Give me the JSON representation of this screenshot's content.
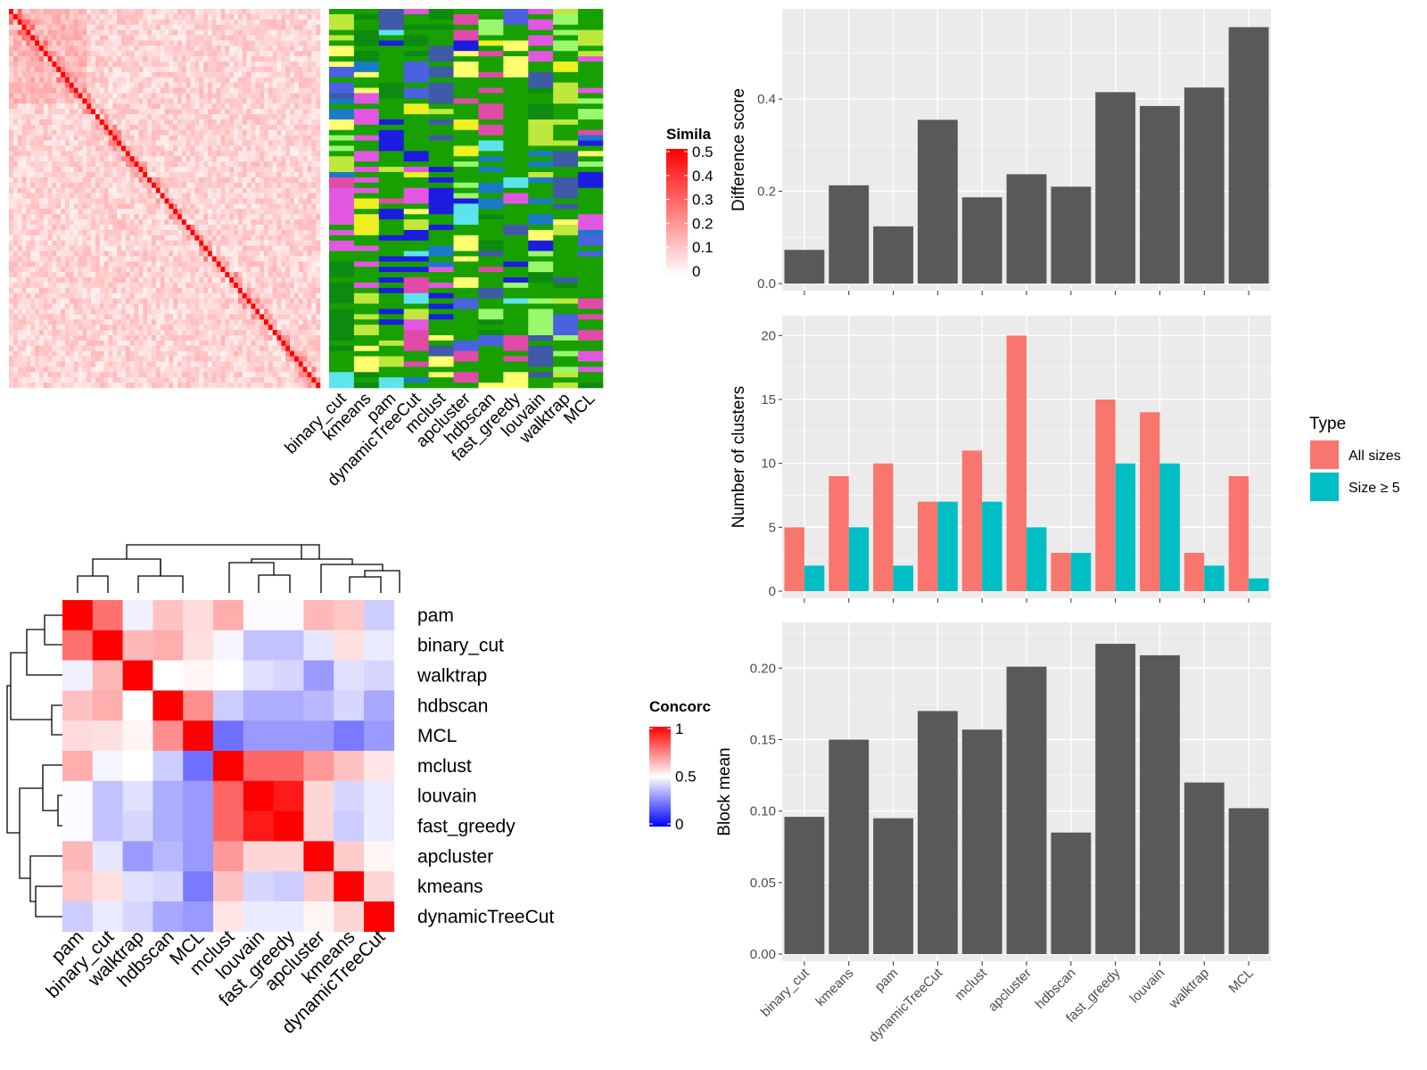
{
  "methods": [
    "binary_cut",
    "kmeans",
    "pam",
    "dynamicTreeCut",
    "mclust",
    "apcluster",
    "hdbscan",
    "fast_greedy",
    "louvain",
    "walktrap",
    "MCL"
  ],
  "similarity_heatmap": {
    "legend_title": "Simila",
    "legend_ticks": [
      "0.5",
      "0.4",
      "0.3",
      "0.2",
      "0.1",
      "0"
    ],
    "n_terms": 72,
    "diag_color": "#ff0000",
    "low_color": "#ffffff"
  },
  "membership_colors": [
    "#17a000",
    "#bfe83c",
    "#e257e2",
    "#4a62e0",
    "#3f5aa6",
    "#9af86f",
    "#5ce4ec",
    "#0d8a10",
    "#e04aa8",
    "#1c1ce0",
    "#f0f020",
    "#1a7ac8",
    "#ffff70"
  ],
  "concordance_heatmap": {
    "legend_title": "Concorc",
    "legend_ticks": [
      "1",
      "0.5",
      "0"
    ],
    "row_order": [
      "pam",
      "binary_cut",
      "walktrap",
      "hdbscan",
      "MCL",
      "mclust",
      "louvain",
      "fast_greedy",
      "apcluster",
      "kmeans",
      "dynamicTreeCut"
    ],
    "col_order": [
      "pam",
      "binary_cut",
      "walktrap",
      "hdbscan",
      "MCL",
      "mclust",
      "louvain",
      "fast_greedy",
      "apcluster",
      "kmeans",
      "dynamicTreeCut"
    ],
    "values": [
      [
        1.0,
        0.78,
        0.47,
        0.62,
        0.57,
        0.66,
        0.49,
        0.49,
        0.64,
        0.61,
        0.4
      ],
      [
        0.78,
        1.0,
        0.64,
        0.66,
        0.56,
        0.48,
        0.38,
        0.38,
        0.45,
        0.56,
        0.46
      ],
      [
        0.47,
        0.64,
        1.0,
        0.5,
        0.52,
        0.5,
        0.44,
        0.42,
        0.3,
        0.44,
        0.42
      ],
      [
        0.62,
        0.66,
        0.5,
        1.0,
        0.72,
        0.4,
        0.34,
        0.34,
        0.36,
        0.42,
        0.33
      ],
      [
        0.57,
        0.56,
        0.52,
        0.72,
        1.0,
        0.22,
        0.3,
        0.3,
        0.3,
        0.24,
        0.3
      ],
      [
        0.66,
        0.48,
        0.5,
        0.4,
        0.22,
        1.0,
        0.8,
        0.8,
        0.7,
        0.62,
        0.55
      ],
      [
        0.49,
        0.38,
        0.44,
        0.34,
        0.3,
        0.8,
        1.0,
        0.95,
        0.58,
        0.42,
        0.46
      ],
      [
        0.49,
        0.38,
        0.42,
        0.34,
        0.3,
        0.8,
        0.95,
        1.0,
        0.58,
        0.4,
        0.46
      ],
      [
        0.64,
        0.45,
        0.3,
        0.36,
        0.3,
        0.7,
        0.58,
        0.58,
        1.0,
        0.6,
        0.52
      ],
      [
        0.61,
        0.56,
        0.44,
        0.42,
        0.24,
        0.62,
        0.42,
        0.4,
        0.6,
        1.0,
        0.58
      ],
      [
        0.4,
        0.46,
        0.42,
        0.33,
        0.3,
        0.55,
        0.46,
        0.46,
        0.52,
        0.58,
        1.0
      ]
    ]
  },
  "chart_data": [
    {
      "type": "bar",
      "categories": [
        "binary_cut",
        "kmeans",
        "pam",
        "dynamicTreeCut",
        "mclust",
        "apcluster",
        "hdbscan",
        "fast_greedy",
        "louvain",
        "walktrap",
        "MCL"
      ],
      "values": [
        0.073,
        0.213,
        0.124,
        0.355,
        0.187,
        0.237,
        0.21,
        0.415,
        0.385,
        0.425,
        0.556
      ],
      "ylabel": "Difference score",
      "ylim": [
        0,
        0.58
      ],
      "yticks": [
        "0.0",
        "0.2",
        "0.4"
      ],
      "grid": true
    },
    {
      "type": "bar",
      "categories": [
        "binary_cut",
        "kmeans",
        "pam",
        "dynamicTreeCut",
        "mclust",
        "apcluster",
        "hdbscan",
        "fast_greedy",
        "louvain",
        "walktrap",
        "MCL"
      ],
      "series": [
        {
          "name": "All sizes",
          "values": [
            5,
            9,
            10,
            7,
            11,
            20,
            3,
            15,
            14,
            3,
            9
          ],
          "color": "#f8766d"
        },
        {
          "name": "Size ≥ 5",
          "values": [
            2,
            5,
            2,
            7,
            7,
            5,
            3,
            10,
            10,
            2,
            1
          ],
          "color": "#00bfc4"
        }
      ],
      "ylabel": "Number of clusters",
      "ylim": [
        0,
        21
      ],
      "yticks": [
        "0",
        "5",
        "10",
        "15",
        "20"
      ],
      "legend": {
        "title": "Type",
        "position": "right"
      },
      "grid": true
    },
    {
      "type": "bar",
      "categories": [
        "binary_cut",
        "kmeans",
        "pam",
        "dynamicTreeCut",
        "mclust",
        "apcluster",
        "hdbscan",
        "fast_greedy",
        "louvain",
        "walktrap",
        "MCL"
      ],
      "values": [
        0.096,
        0.15,
        0.095,
        0.17,
        0.157,
        0.201,
        0.085,
        0.217,
        0.209,
        0.12,
        0.102
      ],
      "ylabel": "Block mean",
      "ylim": [
        0,
        0.227
      ],
      "yticks": [
        "0.00",
        "0.05",
        "0.10",
        "0.15",
        "0.20"
      ],
      "grid": true
    }
  ]
}
